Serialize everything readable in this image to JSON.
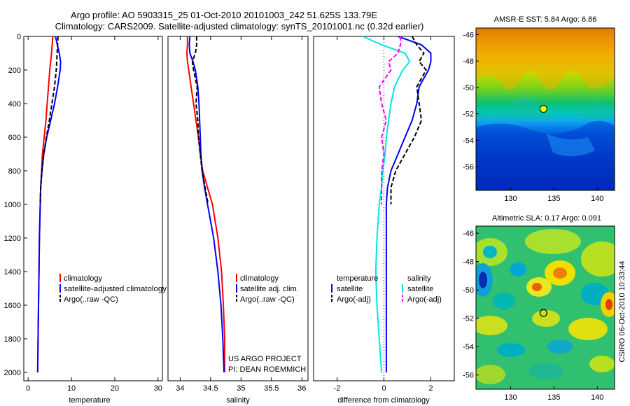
{
  "header": {
    "title_line1": "Argo profile: AO 5903315_25 01-Oct-2010 20101003_242 51.625S 133.79E",
    "title_line2": "Climatology: CARS2009. Satellite-adjusted climatology: synTS_20101001.nc (0.32d earlier)"
  },
  "credit": {
    "line1": "US ARGO PROJECT",
    "line2": "PI: DEAN ROEMMICH",
    "side": "CSIRO 06-Oct-2010 10:33:44"
  },
  "colors": {
    "climatology": "#ff0000",
    "satellite": "#0000ff",
    "argo": "#000000",
    "sat_diff_salinity": "#00e5e5",
    "argo_diff_salinity": "#ff00ff"
  },
  "chart_data": [
    {
      "type": "line",
      "id": "temperature",
      "xlabel": "temperature",
      "ylabel": "",
      "xlim": [
        -1,
        31
      ],
      "ylim": [
        2050,
        0
      ],
      "xticks": [
        "0",
        "10",
        "20",
        "30"
      ],
      "xtick_values": [
        0,
        10,
        20,
        30
      ],
      "yticks": [
        "0",
        "200",
        "400",
        "600",
        "800",
        "1000",
        "1200",
        "1400",
        "1600",
        "1800",
        "2000"
      ],
      "ytick_values": [
        0,
        200,
        400,
        600,
        800,
        1000,
        1200,
        1400,
        1600,
        1800,
        2000
      ],
      "legend_location": "lower-right",
      "series": [
        {
          "name": "climatology",
          "color": "#ff0000",
          "style": "solid",
          "depth": [
            0,
            100,
            200,
            300,
            400,
            500,
            600,
            700,
            800,
            900,
            1000,
            1200,
            1400,
            1600,
            1800,
            2000
          ],
          "values": [
            5.7,
            5.4,
            5.0,
            4.7,
            4.4,
            4.1,
            3.7,
            3.3,
            3.1,
            2.9,
            2.8,
            2.6,
            2.5,
            2.4,
            2.3,
            2.2
          ]
        },
        {
          "name": "satellite-adjusted climatology",
          "color": "#0000ff",
          "style": "solid",
          "depth": [
            0,
            100,
            150,
            200,
            300,
            400,
            500,
            600,
            700,
            800,
            900,
            1000,
            1200,
            1400,
            1600,
            1800,
            2000
          ],
          "values": [
            6.3,
            7.2,
            7.5,
            7.4,
            6.8,
            6.1,
            5.2,
            4.3,
            3.6,
            3.2,
            2.9,
            2.8,
            2.6,
            2.5,
            2.4,
            2.3,
            2.2
          ]
        },
        {
          "name": "Argo(..raw -QC)",
          "color": "#000000",
          "style": "dashed",
          "depth": [
            0,
            50,
            100,
            200,
            300,
            400,
            500,
            600,
            700,
            800,
            900,
            1000
          ],
          "values": [
            6.9,
            6.8,
            6.7,
            6.5,
            6.1,
            5.5,
            4.9,
            4.2,
            3.6,
            3.2,
            2.9,
            2.8
          ]
        }
      ]
    },
    {
      "type": "line",
      "id": "salinity",
      "xlabel": "salinity",
      "ylabel": "",
      "xlim": [
        33.8,
        36.1
      ],
      "ylim": [
        2050,
        0
      ],
      "xticks": [
        "34",
        "34.5",
        "35",
        "35.5",
        "36"
      ],
      "xtick_values": [
        34,
        34.5,
        35,
        35.5,
        36
      ],
      "legend_location": "lower-right",
      "series": [
        {
          "name": "climatology",
          "color": "#ff0000",
          "style": "solid",
          "depth": [
            0,
            50,
            100,
            150,
            200,
            300,
            400,
            500,
            600,
            700,
            800,
            900,
            1000,
            1200,
            1400,
            1600,
            1800,
            2000
          ],
          "values": [
            34.12,
            34.12,
            34.11,
            34.12,
            34.14,
            34.18,
            34.22,
            34.26,
            34.3,
            34.33,
            34.37,
            34.45,
            34.53,
            34.62,
            34.68,
            34.71,
            34.73,
            34.73
          ]
        },
        {
          "name": "satellite adj. clim.",
          "color": "#0000ff",
          "style": "solid",
          "depth": [
            0,
            50,
            100,
            150,
            200,
            300,
            400,
            500,
            600,
            700,
            800,
            900,
            1000,
            1200,
            1400,
            1600,
            1800,
            2000
          ],
          "values": [
            34.16,
            34.15,
            34.16,
            34.21,
            34.25,
            34.29,
            34.31,
            34.32,
            34.33,
            34.34,
            34.36,
            34.4,
            34.45,
            34.55,
            34.62,
            34.67,
            34.7,
            34.72
          ]
        },
        {
          "name": "Argo(..raw -QC)",
          "color": "#000000",
          "style": "dashed",
          "depth": [
            0,
            50,
            100,
            150,
            200,
            300,
            400,
            500,
            600,
            700,
            800,
            900,
            1000
          ],
          "values": [
            34.27,
            34.27,
            34.25,
            34.2,
            34.22,
            34.28,
            34.26,
            34.29,
            34.3,
            34.33,
            34.36,
            34.41,
            34.46
          ]
        }
      ]
    },
    {
      "type": "line",
      "id": "difference",
      "xlabel": "difference from climatology",
      "ylabel": "",
      "xlim": [
        -3,
        3
      ],
      "ylim": [
        2050,
        0
      ],
      "xticks": [
        "-2",
        "0",
        "2"
      ],
      "xtick_values": [
        -2,
        0,
        2
      ],
      "legend_location": "lower-center",
      "legend_headers": [
        "temperature",
        "salinity"
      ],
      "series": [
        {
          "name": "satellite",
          "group": "temperature",
          "color": "#0000ff",
          "style": "solid",
          "depth": [
            0,
            50,
            100,
            150,
            200,
            300,
            400,
            500,
            600,
            700,
            800,
            900,
            1000,
            1200,
            1400,
            1600,
            1800,
            2000
          ],
          "values": [
            0.6,
            1.6,
            2.0,
            2.0,
            1.9,
            1.5,
            1.4,
            1.2,
            0.9,
            0.6,
            0.3,
            0.15,
            0.1,
            0.1,
            0.1,
            0.1,
            0.1,
            0.1
          ]
        },
        {
          "name": "Argo(-adj)",
          "group": "temperature",
          "color": "#000000",
          "style": "dashed",
          "depth": [
            0,
            50,
            100,
            150,
            200,
            300,
            400,
            500,
            600,
            700,
            800,
            900,
            1000
          ],
          "values": [
            1.2,
            1.4,
            1.7,
            1.5,
            1.8,
            1.4,
            1.5,
            1.6,
            1.3,
            0.9,
            0.5,
            0.3,
            0.3
          ]
        },
        {
          "name": "satellite",
          "group": "salinity",
          "color": "#00e5e5",
          "style": "solid",
          "depth": [
            0,
            50,
            100,
            150,
            200,
            300,
            400,
            500,
            600,
            700,
            800,
            900,
            1000,
            1200,
            1400,
            1600,
            1800,
            2000
          ],
          "values": [
            -0.9,
            -0.1,
            0.9,
            1.1,
            0.8,
            0.45,
            0.3,
            0.2,
            0.1,
            0.05,
            -0.05,
            -0.1,
            -0.2,
            -0.3,
            -0.35,
            -0.3,
            -0.2,
            -0.1
          ]
        },
        {
          "name": "Argo(-adj)",
          "group": "salinity",
          "color": "#ff00ff",
          "style": "dashed",
          "depth": [
            0,
            50,
            100,
            150,
            200,
            300,
            400,
            500,
            600,
            700,
            800,
            900,
            1000
          ],
          "values": [
            0.7,
            0.7,
            0.6,
            0.2,
            0.3,
            -0.2,
            -0.1,
            0.1,
            -0.1,
            0.0,
            -0.1,
            -0.1,
            -0.1
          ]
        }
      ]
    },
    {
      "type": "heatmap",
      "id": "sst",
      "title": "AMSR-E SST: 5.84 Argo: 6.86",
      "xlim": [
        126,
        142
      ],
      "ylim": [
        -57.8,
        -45.5
      ],
      "xticks": [
        "130",
        "135",
        "140"
      ],
      "xtick_values": [
        130,
        135,
        140
      ],
      "yticks": [
        "-46",
        "-48",
        "-50",
        "-52",
        "-54",
        "-56"
      ],
      "ytick_values": [
        -46,
        -48,
        -50,
        -52,
        -54,
        -56
      ],
      "marker": {
        "lon": 133.79,
        "lat": -51.625
      }
    },
    {
      "type": "heatmap",
      "id": "sla",
      "title": "Altimetric SLA: 0.17 Argo: 0.091",
      "xlim": [
        126,
        142
      ],
      "ylim": [
        -57,
        -45.5
      ],
      "xticks": [
        "130",
        "135",
        "140"
      ],
      "xtick_values": [
        130,
        135,
        140
      ],
      "yticks": [
        "-46",
        "-48",
        "-50",
        "-52",
        "-54",
        "-56"
      ],
      "ytick_values": [
        -46,
        -48,
        -50,
        -52,
        -54,
        -56
      ],
      "marker": {
        "lon": 133.79,
        "lat": -51.625
      }
    }
  ]
}
